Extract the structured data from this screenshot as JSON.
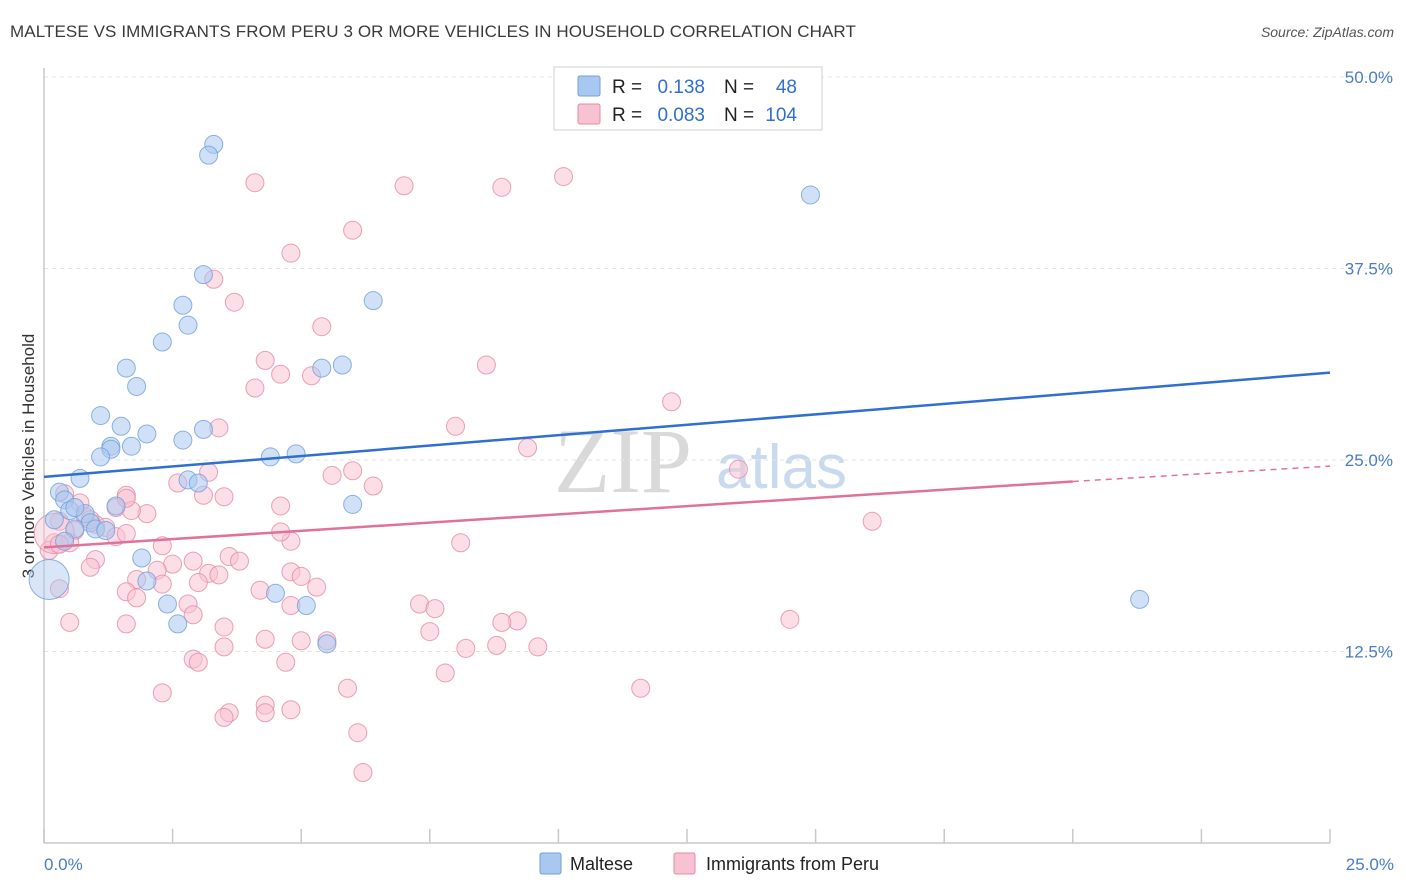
{
  "header": {
    "title": "MALTESE VS IMMIGRANTS FROM PERU 3 OR MORE VEHICLES IN HOUSEHOLD CORRELATION CHART",
    "source": "Source: ZipAtlas.com"
  },
  "legend": {
    "r_label": "R =",
    "n_label": "N =",
    "rows": [
      {
        "r": "0.138",
        "n": "48",
        "color": "#a9c8f0",
        "border": "#6f9fdc"
      },
      {
        "r": "0.083",
        "n": "104",
        "color": "#f7c3d2",
        "border": "#e68aa6"
      }
    ]
  },
  "watermark": {
    "zip": "ZIP",
    "atlas": "atlas"
  },
  "colors": {
    "blue_fill": "#a9c8f0",
    "blue_stroke": "#6f9fdc",
    "blue_line": "#2f6fd0",
    "pink_fill": "#f7c3d2",
    "pink_stroke": "#e68aa6",
    "pink_line": "#e0729a",
    "grid": "#e3e3e3",
    "tick_text": "#4a7cc7"
  },
  "chart_data": {
    "type": "scatter",
    "title": "MALTESE VS IMMIGRANTS FROM PERU 3 OR MORE VEHICLES IN HOUSEHOLD CORRELATION CHART",
    "xlabel": "",
    "ylabel": "3 or more Vehicles in Household",
    "xlim": [
      0,
      25
    ],
    "ylim": [
      0,
      50
    ],
    "x_ticks": [
      "0.0%",
      "25.0%"
    ],
    "y_ticks": [
      {
        "value": 12.5,
        "label": "12.5%"
      },
      {
        "value": 25.0,
        "label": "25.0%"
      },
      {
        "value": 37.5,
        "label": "37.5%"
      },
      {
        "value": 50.0,
        "label": "50.0%"
      }
    ],
    "grid": "horizontal dashed",
    "legend_position": "top-center",
    "series": [
      {
        "name": "Maltese",
        "r": 0.138,
        "n": 48,
        "trend": {
          "x0": 0,
          "y0": 23.9,
          "x1": 25,
          "y1": 30.7
        },
        "points": [
          [
            3.3,
            45.6
          ],
          [
            3.2,
            44.9
          ],
          [
            14.9,
            42.3
          ],
          [
            3.1,
            37.1
          ],
          [
            6.4,
            35.4
          ],
          [
            2.7,
            35.1
          ],
          [
            2.8,
            33.8
          ],
          [
            2.3,
            32.7
          ],
          [
            5.4,
            31.0
          ],
          [
            5.8,
            31.2
          ],
          [
            1.6,
            31.0
          ],
          [
            1.8,
            29.8
          ],
          [
            1.1,
            27.9
          ],
          [
            1.5,
            27.2
          ],
          [
            3.1,
            27.0
          ],
          [
            2.0,
            26.7
          ],
          [
            2.7,
            26.3
          ],
          [
            1.3,
            25.9
          ],
          [
            1.7,
            25.9
          ],
          [
            1.3,
            25.7
          ],
          [
            1.1,
            25.2
          ],
          [
            4.4,
            25.2
          ],
          [
            4.9,
            25.4
          ],
          [
            0.7,
            23.8
          ],
          [
            0.3,
            22.9
          ],
          [
            0.4,
            22.4
          ],
          [
            2.8,
            23.7
          ],
          [
            3.0,
            23.5
          ],
          [
            0.5,
            21.7
          ],
          [
            0.8,
            21.5
          ],
          [
            1.4,
            22.0
          ],
          [
            6.0,
            22.1
          ],
          [
            0.6,
            21.9
          ],
          [
            0.2,
            21.1
          ],
          [
            0.9,
            20.9
          ],
          [
            1.0,
            20.5
          ],
          [
            1.2,
            20.4
          ],
          [
            0.6,
            20.5
          ],
          [
            0.4,
            19.7
          ],
          [
            1.9,
            18.6
          ],
          [
            0.1,
            17.2
          ],
          [
            2.0,
            17.1
          ],
          [
            4.5,
            16.3
          ],
          [
            2.4,
            15.6
          ],
          [
            5.1,
            15.5
          ],
          [
            21.3,
            15.9
          ],
          [
            5.5,
            13.0
          ],
          [
            2.6,
            14.3
          ]
        ],
        "sizes_note": "one larger point at [0.1,17.2]"
      },
      {
        "name": "Immigrants from Peru",
        "r": 0.083,
        "n": 104,
        "trend": {
          "x0": 0,
          "y0": 19.3,
          "x1": 20,
          "y1": 23.6,
          "dashed_to": {
            "x": 25,
            "y": 24.6
          }
        },
        "points": [
          [
            10.1,
            43.5
          ],
          [
            8.9,
            42.8
          ],
          [
            4.1,
            43.1
          ],
          [
            7.0,
            42.9
          ],
          [
            6.0,
            40.0
          ],
          [
            4.8,
            38.5
          ],
          [
            3.3,
            36.8
          ],
          [
            3.7,
            35.3
          ],
          [
            5.4,
            33.7
          ],
          [
            4.3,
            31.5
          ],
          [
            8.6,
            31.2
          ],
          [
            4.6,
            30.6
          ],
          [
            5.2,
            30.5
          ],
          [
            4.1,
            29.7
          ],
          [
            12.2,
            28.8
          ],
          [
            3.4,
            27.1
          ],
          [
            8.0,
            27.2
          ],
          [
            9.4,
            25.8
          ],
          [
            13.5,
            24.4
          ],
          [
            5.6,
            24.0
          ],
          [
            6.0,
            24.3
          ],
          [
            3.2,
            24.2
          ],
          [
            2.6,
            23.5
          ],
          [
            6.4,
            23.3
          ],
          [
            1.6,
            22.7
          ],
          [
            3.5,
            22.6
          ],
          [
            0.4,
            22.8
          ],
          [
            0.7,
            22.2
          ],
          [
            4.6,
            22.0
          ],
          [
            1.4,
            21.9
          ],
          [
            2.0,
            21.5
          ],
          [
            1.7,
            21.7
          ],
          [
            0.3,
            21.0
          ],
          [
            0.8,
            21.3
          ],
          [
            1.0,
            20.8
          ],
          [
            1.2,
            20.6
          ],
          [
            0.6,
            20.4
          ],
          [
            1.4,
            20.0
          ],
          [
            1.6,
            20.2
          ],
          [
            0.2,
            19.6
          ],
          [
            0.5,
            19.6
          ],
          [
            0.1,
            19.1
          ],
          [
            4.8,
            19.7
          ],
          [
            8.1,
            19.6
          ],
          [
            16.1,
            21.0
          ],
          [
            2.3,
            19.4
          ],
          [
            1.0,
            18.5
          ],
          [
            2.5,
            18.2
          ],
          [
            2.9,
            18.4
          ],
          [
            3.6,
            18.7
          ],
          [
            3.8,
            18.4
          ],
          [
            0.9,
            18.0
          ],
          [
            2.2,
            17.8
          ],
          [
            3.2,
            17.6
          ],
          [
            3.4,
            17.5
          ],
          [
            4.8,
            17.7
          ],
          [
            5.0,
            17.4
          ],
          [
            1.8,
            17.2
          ],
          [
            2.3,
            16.9
          ],
          [
            3.0,
            17.0
          ],
          [
            1.6,
            16.4
          ],
          [
            1.8,
            16.0
          ],
          [
            4.2,
            16.5
          ],
          [
            5.3,
            16.7
          ],
          [
            0.3,
            16.6
          ],
          [
            2.8,
            15.6
          ],
          [
            4.8,
            15.5
          ],
          [
            7.3,
            15.6
          ],
          [
            7.6,
            15.3
          ],
          [
            2.9,
            14.9
          ],
          [
            3.5,
            14.1
          ],
          [
            9.2,
            14.5
          ],
          [
            8.9,
            14.4
          ],
          [
            14.5,
            14.6
          ],
          [
            1.6,
            14.3
          ],
          [
            0.5,
            14.4
          ],
          [
            7.5,
            13.8
          ],
          [
            4.3,
            13.3
          ],
          [
            5.0,
            13.2
          ],
          [
            3.5,
            12.8
          ],
          [
            5.5,
            13.2
          ],
          [
            8.8,
            12.9
          ],
          [
            8.2,
            12.7
          ],
          [
            9.6,
            12.8
          ],
          [
            2.9,
            12.0
          ],
          [
            3.0,
            11.8
          ],
          [
            4.7,
            11.8
          ],
          [
            7.8,
            11.1
          ],
          [
            11.6,
            10.1
          ],
          [
            5.9,
            10.1
          ],
          [
            2.3,
            9.8
          ],
          [
            4.3,
            9.0
          ],
          [
            4.8,
            8.7
          ],
          [
            4.3,
            8.5
          ],
          [
            3.6,
            8.5
          ],
          [
            3.5,
            8.2
          ],
          [
            6.1,
            7.2
          ],
          [
            6.2,
            4.6
          ],
          [
            0.2,
            20.2
          ],
          [
            0.3,
            19.5
          ],
          [
            4.6,
            20.3
          ],
          [
            1.6,
            22.5
          ],
          [
            0.9,
            21.1
          ],
          [
            3.1,
            22.7
          ]
        ],
        "sizes_note": "one larger point at [0.2,20.2]"
      }
    ]
  },
  "bottom_legend": [
    {
      "label": "Maltese"
    },
    {
      "label": "Immigrants from Peru"
    }
  ]
}
